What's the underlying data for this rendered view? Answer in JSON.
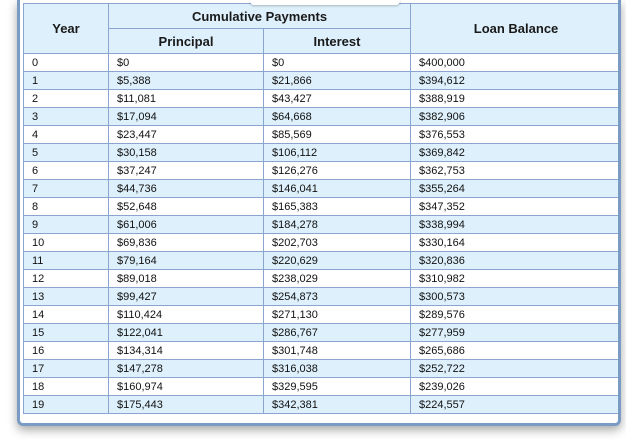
{
  "table": {
    "headers": {
      "year": "Year",
      "cumulative": "Cumulative Payments",
      "principal": "Principal",
      "interest": "Interest",
      "balance": "Loan Balance"
    },
    "rows": [
      {
        "year": "0",
        "principal": "$0",
        "interest": "$0",
        "balance": "$400,000"
      },
      {
        "year": "1",
        "principal": "$5,388",
        "interest": "$21,866",
        "balance": "$394,612"
      },
      {
        "year": "2",
        "principal": "$11,081",
        "interest": "$43,427",
        "balance": "$388,919"
      },
      {
        "year": "3",
        "principal": "$17,094",
        "interest": "$64,668",
        "balance": "$382,906"
      },
      {
        "year": "4",
        "principal": "$23,447",
        "interest": "$85,569",
        "balance": "$376,553"
      },
      {
        "year": "5",
        "principal": "$30,158",
        "interest": "$106,112",
        "balance": "$369,842"
      },
      {
        "year": "6",
        "principal": "$37,247",
        "interest": "$126,276",
        "balance": "$362,753"
      },
      {
        "year": "7",
        "principal": "$44,736",
        "interest": "$146,041",
        "balance": "$355,264"
      },
      {
        "year": "8",
        "principal": "$52,648",
        "interest": "$165,383",
        "balance": "$347,352"
      },
      {
        "year": "9",
        "principal": "$61,006",
        "interest": "$184,278",
        "balance": "$338,994"
      },
      {
        "year": "10",
        "principal": "$69,836",
        "interest": "$202,703",
        "balance": "$330,164"
      },
      {
        "year": "11",
        "principal": "$79,164",
        "interest": "$220,629",
        "balance": "$320,836"
      },
      {
        "year": "12",
        "principal": "$89,018",
        "interest": "$238,029",
        "balance": "$310,982"
      },
      {
        "year": "13",
        "principal": "$99,427",
        "interest": "$254,873",
        "balance": "$300,573"
      },
      {
        "year": "14",
        "principal": "$110,424",
        "interest": "$271,130",
        "balance": "$289,576"
      },
      {
        "year": "15",
        "principal": "$122,041",
        "interest": "$286,767",
        "balance": "$277,959"
      },
      {
        "year": "16",
        "principal": "$134,314",
        "interest": "$301,748",
        "balance": "$265,686"
      },
      {
        "year": "17",
        "principal": "$147,278",
        "interest": "$316,038",
        "balance": "$252,722"
      },
      {
        "year": "18",
        "principal": "$160,974",
        "interest": "$329,595",
        "balance": "$239,026"
      },
      {
        "year": "19",
        "principal": "$175,443",
        "interest": "$342,381",
        "balance": "$224,557"
      }
    ]
  },
  "colors": {
    "header_bg": "#ddf0fb",
    "stripe_bg": "#ddf0fb",
    "border": "#8aa6d0",
    "frame_border": "#7a9cc4"
  }
}
